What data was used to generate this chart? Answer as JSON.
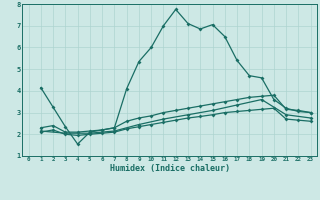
{
  "title": "",
  "xlabel": "Humidex (Indice chaleur)",
  "bg_color": "#cde8e5",
  "grid_color": "#aed4d0",
  "line_color": "#1a6e65",
  "xlim": [
    -0.5,
    23.5
  ],
  "ylim": [
    1,
    8
  ],
  "xticks": [
    0,
    1,
    2,
    3,
    4,
    5,
    6,
    7,
    8,
    9,
    10,
    11,
    12,
    13,
    14,
    15,
    16,
    17,
    18,
    19,
    20,
    21,
    22,
    23
  ],
  "yticks": [
    1,
    2,
    3,
    4,
    5,
    6,
    7,
    8
  ],
  "line1_x": [
    1,
    2,
    3,
    4,
    5,
    6,
    7,
    8,
    9,
    10,
    11,
    12,
    13,
    14,
    15,
    16,
    17,
    18,
    19,
    20,
    21,
    22,
    23
  ],
  "line1_y": [
    4.15,
    3.25,
    2.35,
    1.55,
    2.1,
    2.2,
    2.3,
    4.1,
    5.35,
    6.0,
    7.0,
    7.75,
    7.1,
    6.85,
    7.05,
    6.5,
    5.4,
    4.7,
    4.6,
    3.6,
    3.2,
    3.05,
    3.0
  ],
  "line2_x": [
    1,
    2,
    3,
    4,
    5,
    6,
    7,
    8,
    9,
    10,
    11,
    12,
    13,
    14,
    15,
    16,
    17,
    18,
    19,
    20,
    21,
    22,
    23
  ],
  "line2_y": [
    2.3,
    2.4,
    2.1,
    2.1,
    2.15,
    2.2,
    2.3,
    2.6,
    2.75,
    2.85,
    3.0,
    3.1,
    3.2,
    3.3,
    3.4,
    3.5,
    3.6,
    3.7,
    3.75,
    3.8,
    3.15,
    3.1,
    3.0
  ],
  "line3_x": [
    1,
    2,
    3,
    4,
    5,
    6,
    7,
    8,
    9,
    10,
    11,
    12,
    13,
    14,
    15,
    16,
    17,
    18,
    19,
    20,
    21,
    22,
    23
  ],
  "line3_y": [
    2.1,
    2.2,
    2.0,
    1.95,
    2.0,
    2.05,
    2.1,
    2.25,
    2.35,
    2.45,
    2.55,
    2.65,
    2.75,
    2.82,
    2.9,
    3.0,
    3.05,
    3.1,
    3.15,
    3.2,
    2.7,
    2.65,
    2.6
  ],
  "line4_x": [
    1,
    3,
    5,
    7,
    9,
    11,
    13,
    15,
    17,
    19,
    21,
    23
  ],
  "line4_y": [
    2.15,
    2.05,
    2.05,
    2.15,
    2.45,
    2.7,
    2.9,
    3.1,
    3.35,
    3.6,
    2.9,
    2.75
  ]
}
